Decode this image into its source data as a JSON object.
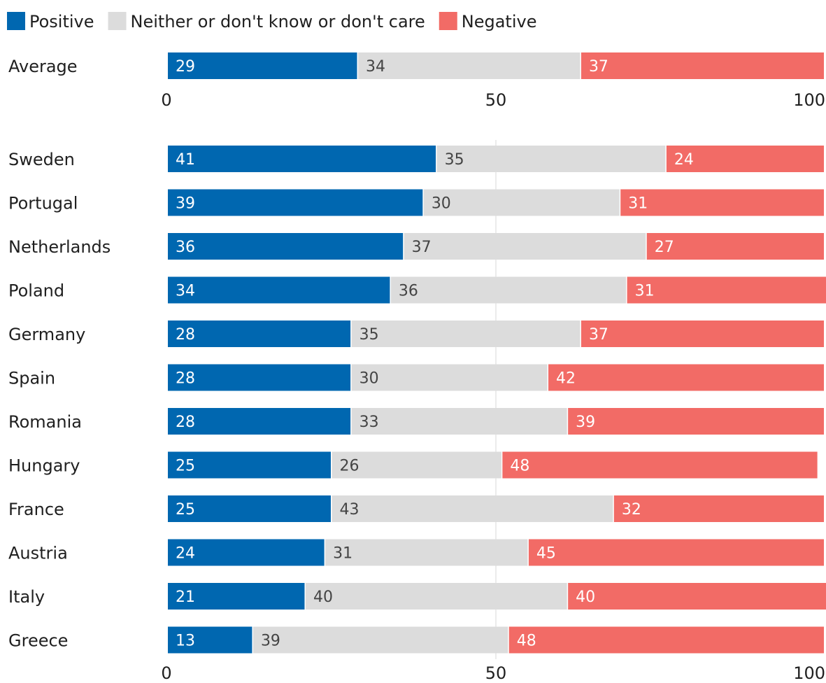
{
  "chart_data": {
    "type": "bar",
    "orientation": "horizontal",
    "stacked": true,
    "xlim": [
      0,
      100
    ],
    "xticks": [
      "0",
      "50",
      "100"
    ],
    "grid": true,
    "legend_position": "top-left",
    "legend": [
      {
        "name": "Positive",
        "color": "#0067b0"
      },
      {
        "name": "Neither or don't know or don't care",
        "color": "#dcdcdc"
      },
      {
        "name": "Negative",
        "color": "#f26b66"
      }
    ],
    "summary": {
      "category": "Average",
      "values": [
        29,
        34,
        37
      ]
    },
    "categories": [
      "Sweden",
      "Portugal",
      "Netherlands",
      "Poland",
      "Germany",
      "Spain",
      "Romania",
      "Hungary",
      "France",
      "Austria",
      "Italy",
      "Greece"
    ],
    "series": [
      {
        "name": "Positive",
        "values": [
          41,
          39,
          36,
          34,
          28,
          28,
          28,
          25,
          25,
          24,
          21,
          13
        ]
      },
      {
        "name": "Neither or don't know or don't care",
        "values": [
          35,
          30,
          37,
          36,
          35,
          30,
          33,
          26,
          43,
          31,
          40,
          39
        ]
      },
      {
        "name": "Negative",
        "values": [
          24,
          31,
          27,
          31,
          37,
          42,
          39,
          48,
          32,
          45,
          40,
          48
        ]
      }
    ]
  }
}
